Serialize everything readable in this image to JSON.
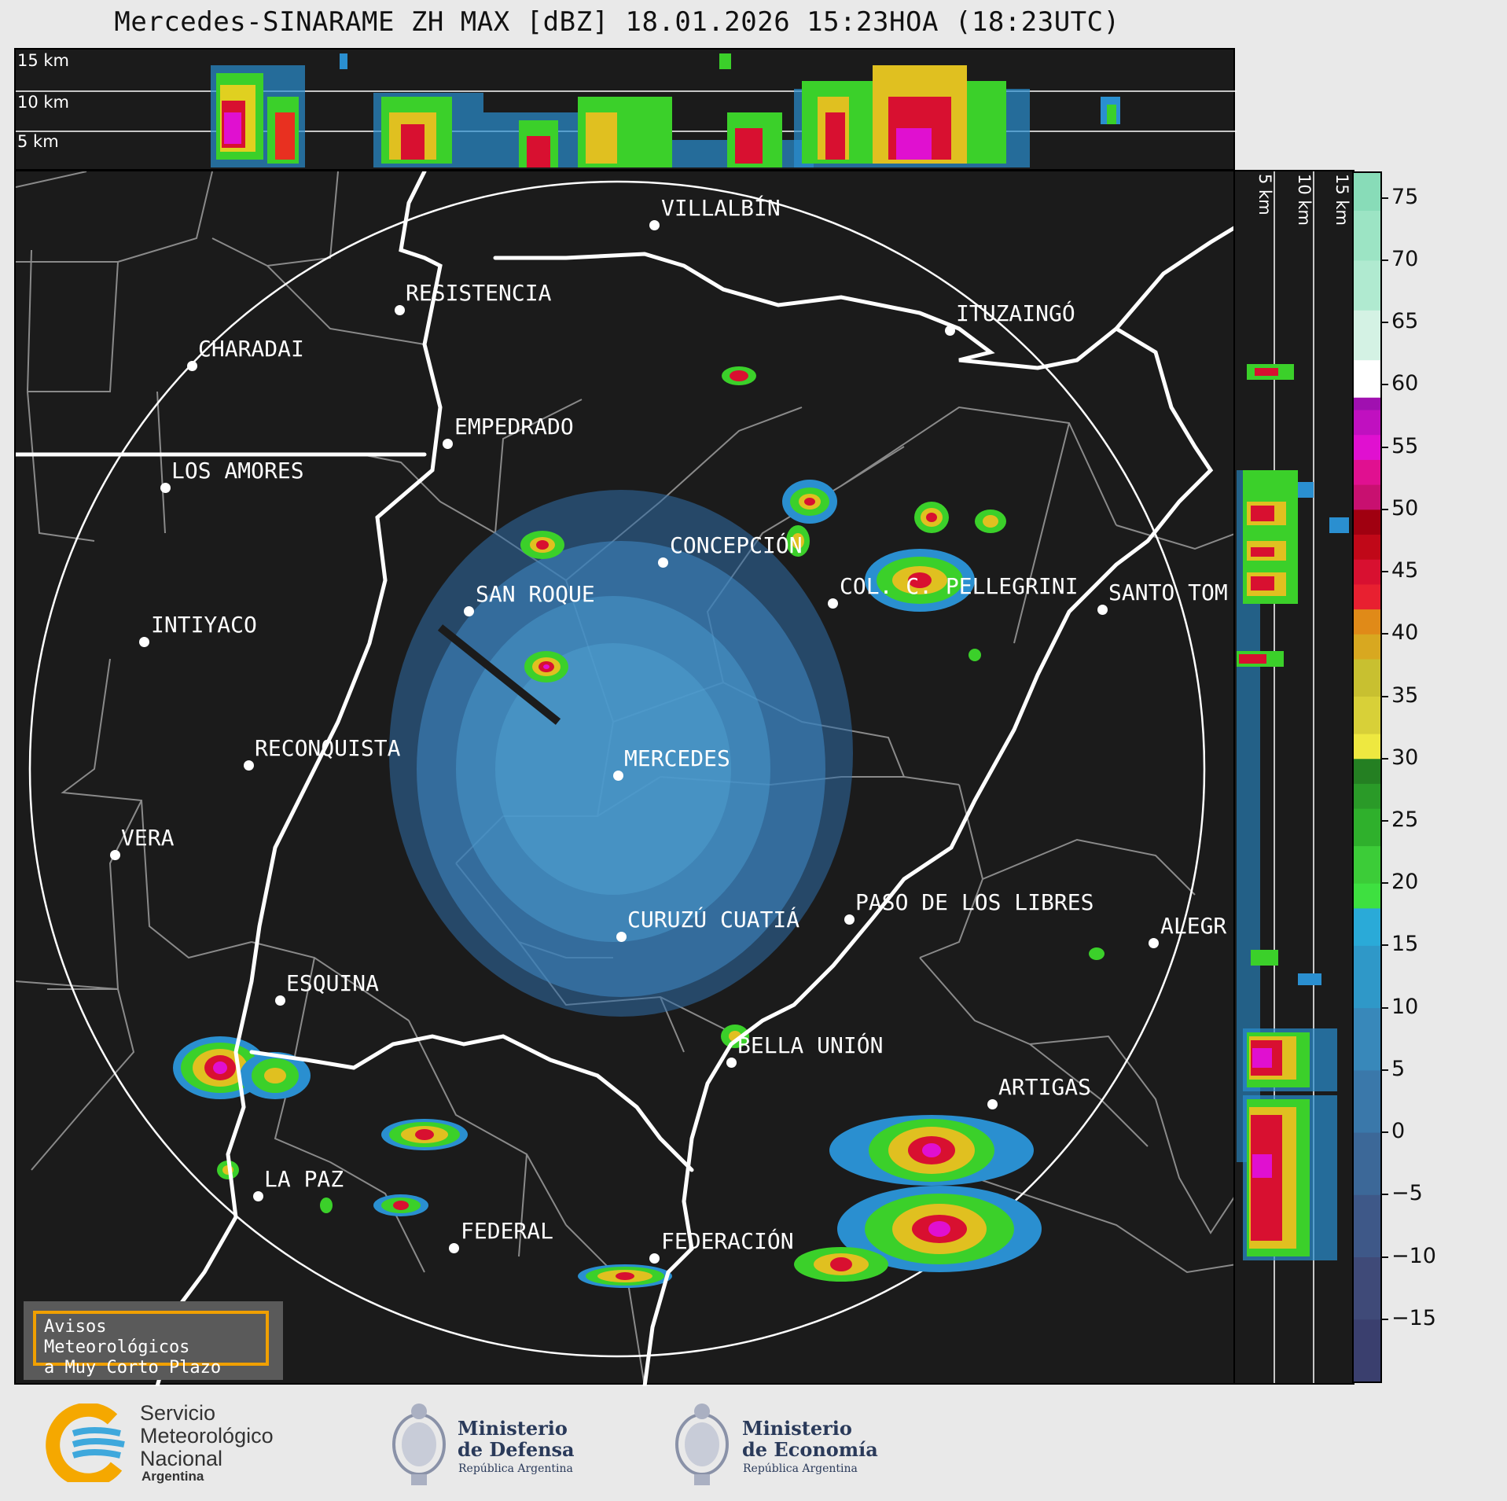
{
  "title": "Mercedes-SINARAME ZH MAX [dBZ] 18.01.2026 15:23HOA (18:23UTC)",
  "top_panel": {
    "labels": [
      "15 km",
      "10 km",
      "5 km"
    ]
  },
  "side_panel": {
    "labels": [
      "5 km",
      "10 km",
      "15 km"
    ]
  },
  "cities": [
    {
      "name": "VILLALBÍN"
    },
    {
      "name": "RESISTENCIA"
    },
    {
      "name": "CHARADAI"
    },
    {
      "name": "ITUZAINGÓ"
    },
    {
      "name": "EMPEDRADO"
    },
    {
      "name": "LOS AMORES"
    },
    {
      "name": "CONCEPCIÓN"
    },
    {
      "name": "SAN ROQUE"
    },
    {
      "name": "COL. C. PELLEGRINI"
    },
    {
      "name": "SANTO TOM"
    },
    {
      "name": "INTIYACO"
    },
    {
      "name": "RECONQUISTA"
    },
    {
      "name": "MERCEDES"
    },
    {
      "name": "VERA"
    },
    {
      "name": "CURUZÚ CUATIÁ"
    },
    {
      "name": "PASO DE LOS LIBRES"
    },
    {
      "name": "ALEGR"
    },
    {
      "name": "ESQUINA"
    },
    {
      "name": "BELLA UNIÓN"
    },
    {
      "name": "ARTIGAS"
    },
    {
      "name": "LA PAZ"
    },
    {
      "name": "FEDERAL"
    },
    {
      "name": "FEDERACIÓN"
    }
  ],
  "legend_box": {
    "line1": "Avisos Meteorológicos",
    "line2": "a Muy Corto Plazo"
  },
  "colorbar": {
    "unit": "dBZ",
    "range": [
      -20,
      77
    ],
    "ticks": [
      "75",
      "70",
      "65",
      "60",
      "55",
      "50",
      "45",
      "40",
      "35",
      "30",
      "25",
      "20",
      "15",
      "10",
      "5",
      "0",
      "−5",
      "−10",
      "−15"
    ]
  },
  "logos": {
    "smn": {
      "line1": "Servicio",
      "line2": "Meteorológico",
      "line3": "Nacional",
      "line4": "Argentina"
    },
    "defensa": {
      "line1": "Ministerio",
      "line2": "de Defensa",
      "line3": "República Argentina"
    },
    "economia": {
      "line1": "Ministerio",
      "line2": "de Economía",
      "line3": "República Argentina"
    }
  },
  "colors": {
    "background": "#1b1b1b",
    "range_ring": "#ffffff",
    "rivers": "#ffffff",
    "borders": "#8a8a8a",
    "smn_orange": "#f5a800",
    "smn_blue": "#3ea8dc"
  }
}
